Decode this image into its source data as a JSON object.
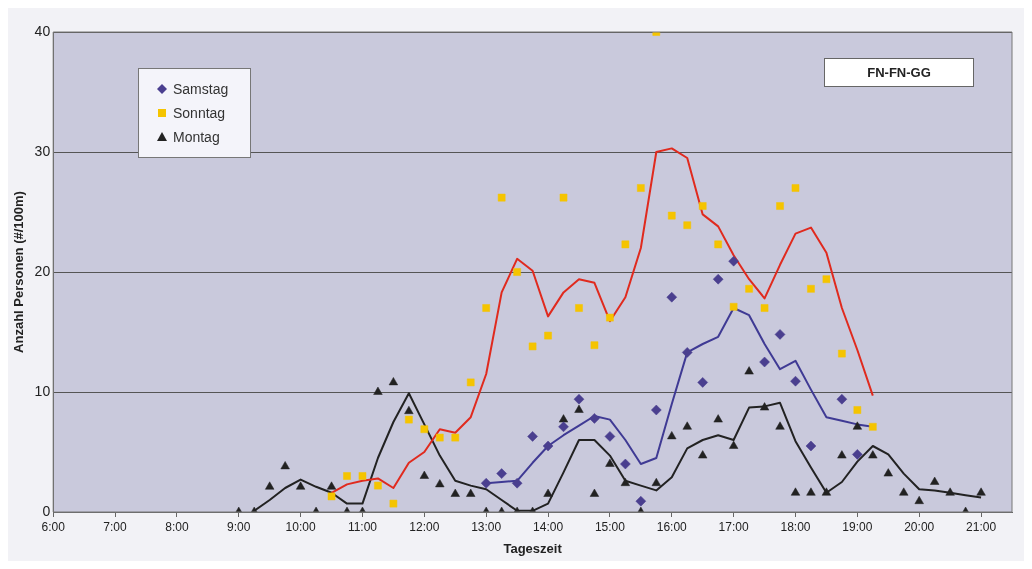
{
  "chart_data": {
    "type": "scatter",
    "xlabel": "Tageszeit",
    "ylabel": "Anzahl Personen (#/100m)",
    "annotations": [
      "FN-FN-GG"
    ],
    "xlim": [
      6,
      21.5
    ],
    "xticks": [
      {
        "value": 6,
        "label": "6:00"
      },
      {
        "value": 7,
        "label": "7:00"
      },
      {
        "value": 8,
        "label": "8:00"
      },
      {
        "value": 9,
        "label": "9:00"
      },
      {
        "value": 10,
        "label": "10:00"
      },
      {
        "value": 11,
        "label": "11:00"
      },
      {
        "value": 12,
        "label": "12:00"
      },
      {
        "value": 13,
        "label": "13:00"
      },
      {
        "value": 14,
        "label": "14:00"
      },
      {
        "value": 15,
        "label": "15:00"
      },
      {
        "value": 16,
        "label": "16:00"
      },
      {
        "value": 17,
        "label": "17:00"
      },
      {
        "value": 18,
        "label": "18:00"
      },
      {
        "value": 19,
        "label": "19:00"
      },
      {
        "value": 20,
        "label": "20:00"
      },
      {
        "value": 21,
        "label": "21:00"
      }
    ],
    "ylim": [
      0,
      40
    ],
    "yticks": [
      0,
      10,
      20,
      30,
      40
    ],
    "grid": "y",
    "legend": "top left",
    "series": [
      {
        "name": "Samstag",
        "marker": "diamond",
        "color": "#4a3f8f",
        "x": [
          13,
          13.25,
          13.5,
          13.75,
          14,
          14.25,
          14.5,
          14.75,
          15,
          15.25,
          15.5,
          15.75,
          16,
          16.25,
          16.5,
          16.75,
          17,
          17.5,
          17.75,
          18,
          18.25,
          18.75,
          19
        ],
        "values": [
          2.4,
          3.2,
          2.4,
          6.3,
          5.5,
          7.1,
          9.4,
          7.8,
          6.3,
          4,
          0.9,
          8.5,
          17.9,
          13.3,
          10.8,
          19.4,
          20.9,
          12.5,
          14.8,
          10.9,
          5.5,
          9.4,
          4.8
        ]
      },
      {
        "name": "Sonntag",
        "marker": "square",
        "color": "#f5c400",
        "x": [
          10.5,
          10.75,
          11,
          11.25,
          11.5,
          11.75,
          12,
          12.25,
          12.5,
          12.75,
          13,
          13.25,
          13.5,
          13.75,
          14,
          14.25,
          14.5,
          14.75,
          15,
          15.25,
          15.5,
          15.75,
          16,
          16.25,
          16.5,
          16.75,
          17,
          17.25,
          17.5,
          17.75,
          18,
          18.25,
          18.5,
          18.75,
          19,
          19.25
        ],
        "values": [
          1.3,
          3,
          3,
          2.2,
          0.7,
          7.7,
          6.9,
          6.2,
          6.2,
          10.8,
          17,
          26.2,
          20,
          13.8,
          14.7,
          26.2,
          17,
          13.9,
          16.2,
          22.3,
          27,
          40,
          24.7,
          23.9,
          25.5,
          22.3,
          17.1,
          18.6,
          17,
          25.5,
          27,
          18.6,
          19.4,
          13.2,
          8.5,
          7.1
        ]
      },
      {
        "name": "Montag",
        "marker": "triangle",
        "color": "#222222",
        "x": [
          9,
          9.25,
          9.5,
          9.75,
          10,
          10.25,
          10.5,
          10.75,
          11,
          11.25,
          11.5,
          11.75,
          12,
          12.25,
          12.5,
          12.75,
          13,
          13.25,
          13.5,
          13.75,
          14,
          14.25,
          14.5,
          14.75,
          15,
          15.25,
          15.5,
          15.75,
          16,
          16.25,
          16.5,
          16.75,
          17,
          17.25,
          17.5,
          17.75,
          18,
          18.25,
          18.5,
          18.75,
          19,
          19.25,
          19.5,
          19.75,
          20,
          20.25,
          20.5,
          20.75,
          21
        ],
        "values": [
          0,
          0,
          2.1,
          3.8,
          2.1,
          0,
          2.1,
          0,
          0,
          10,
          10.8,
          8.4,
          3,
          2.3,
          1.5,
          1.5,
          0,
          0,
          0,
          0,
          1.5,
          7.7,
          8.5,
          1.5,
          4,
          2.4,
          0,
          2.4,
          6.3,
          7.1,
          4.7,
          7.7,
          5.5,
          11.7,
          8.7,
          7.1,
          1.6,
          1.6,
          1.6,
          4.7,
          7.1,
          4.7,
          3.2,
          1.6,
          0.9,
          2.5,
          1.6,
          0,
          1.6
        ]
      },
      {
        "type": "line",
        "marker": "none",
        "color": "#e02a1e",
        "x": [
          10.5,
          10.75,
          11,
          11.25,
          11.5,
          11.75,
          12,
          12.25,
          12.5,
          12.75,
          13,
          13.25,
          13.5,
          13.75,
          14,
          14.25,
          14.5,
          14.75,
          15,
          15.25,
          15.5,
          15.75,
          16,
          16.25,
          16.5,
          16.75,
          17,
          17.25,
          17.5,
          17.75,
          18,
          18.25,
          18.5,
          18.75,
          19,
          19.25
        ],
        "values": [
          1.6,
          2.3,
          2.6,
          2.8,
          2,
          4.1,
          5,
          6.9,
          6.6,
          7.9,
          11.5,
          18.3,
          21.1,
          20.1,
          16.3,
          18.3,
          19.4,
          19.1,
          15.9,
          17.9,
          22,
          30,
          30.3,
          29.5,
          24.8,
          23.8,
          21.4,
          19.4,
          17.8,
          20.6,
          23.2,
          23.7,
          21.6,
          17,
          13.5,
          9.7
        ]
      },
      {
        "type": "line",
        "marker": "none",
        "color": "#3f3a94",
        "x": [
          13,
          13.25,
          13.5,
          13.75,
          14,
          14.25,
          14.5,
          14.75,
          15,
          15.25,
          15.5,
          15.75,
          16,
          16.25,
          16.5,
          16.75,
          17,
          17.25,
          17.5,
          17.75,
          18,
          18.25,
          18.5,
          18.75,
          19,
          19.25
        ],
        "values": [
          2.4,
          2.5,
          2.6,
          4.1,
          5.5,
          6.4,
          7.2,
          8,
          7.7,
          6,
          4,
          4.5,
          9,
          13.3,
          14,
          14.6,
          17,
          16.4,
          14,
          11.9,
          12.6,
          10.2,
          7.9,
          7.6,
          7.3,
          7.1
        ]
      },
      {
        "type": "line",
        "marker": "none",
        "color": "#222222",
        "x": [
          9.25,
          9.5,
          9.75,
          10,
          10.25,
          10.5,
          10.75,
          11,
          11.25,
          11.5,
          11.75,
          12,
          12.25,
          12.5,
          12.75,
          13,
          13.25,
          13.5,
          13.75,
          14,
          14.25,
          14.5,
          14.75,
          15,
          15.25,
          15.5,
          15.75,
          16,
          16.25,
          16.5,
          16.75,
          17,
          17.25,
          17.5,
          17.75,
          18,
          18.25,
          18.5,
          18.75,
          19,
          19.25,
          19.5,
          19.75,
          20,
          20.25,
          20.5,
          20.75,
          21
        ],
        "values": [
          0.1,
          1,
          2,
          2.7,
          2.1,
          1.6,
          0.7,
          0.7,
          4.5,
          7.5,
          9.9,
          7.3,
          4.7,
          2.6,
          2.2,
          1.9,
          1,
          0.1,
          0.1,
          0.7,
          3.3,
          6,
          6,
          4.7,
          2.6,
          2.2,
          1.8,
          2.9,
          5.3,
          6,
          6.4,
          6,
          8.7,
          8.8,
          9.1,
          5.9,
          3.7,
          1.6,
          2.5,
          4.2,
          5.5,
          4.8,
          3.2,
          1.9,
          1.8,
          1.6,
          1.4,
          1.2
        ]
      }
    ]
  }
}
